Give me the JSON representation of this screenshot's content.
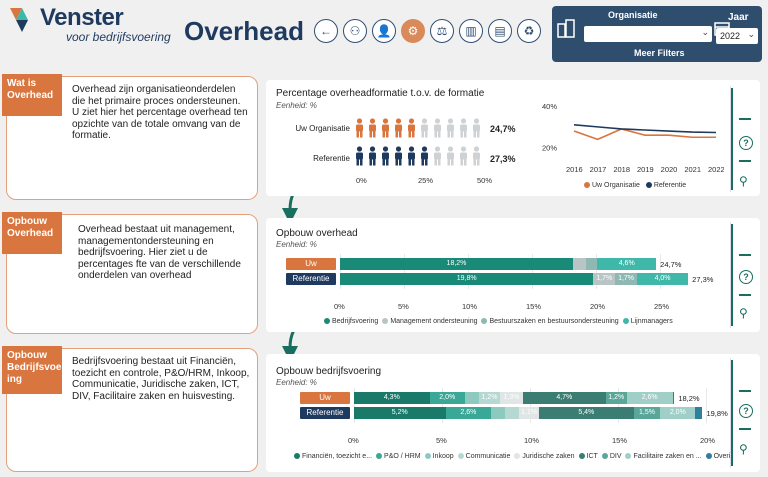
{
  "header": {
    "logo_title": "Venster",
    "logo_sub": "voor bedrijfsvoering",
    "page_title": "Overhead",
    "nav_icons": [
      "back-arrow-icon",
      "org-chart-icon",
      "person-icon",
      "gears-icon",
      "balance-icon",
      "buildings-icon",
      "presentation-icon",
      "recycle-icon"
    ],
    "active_nav": 3
  },
  "filters": {
    "org_label": "Organisatie",
    "org_value": "",
    "year_label": "Jaar",
    "year_value": "2022",
    "more_filters": "Meer Filters"
  },
  "sections": [
    {
      "tag": "Wat is Overhead",
      "text": "Overhead zijn organisatieonderdelen die het primaire proces ondersteunen. U ziet hier het percentage overhead ten opzichte van de totale omvang van de formatie."
    },
    {
      "tag": "Opbouw Overhead",
      "text": "Overhead bestaat uit management, managementondersteuning en bedrijfsvoering. Hier ziet u de percentages fte van de verschillende onderdelen van overhead"
    },
    {
      "tag": "Opbouw Bedrijfsvoer-ing",
      "text": "Bedrijfsvoering bestaat uit Financiën, toezicht en controle, P&O/HRM, Inkoop, Communicatie, Juridische zaken, ICT, DIV, Facilitaire zaken en huisvesting."
    }
  ],
  "card1": {
    "title": "Percentage overheadformatie t.o.v. de formatie",
    "unit": "Eenheid: %",
    "rows": [
      {
        "label": "Uw Organisatie",
        "value": "24,7%",
        "filled": 5
      },
      {
        "label": "Referentie",
        "value": "27,3%",
        "filled": 5.5
      }
    ],
    "axis": [
      "0%",
      "25%",
      "50%"
    ]
  },
  "chart_data": [
    {
      "type": "line",
      "x": [
        2016,
        2017,
        2018,
        2019,
        2020,
        2021,
        2022
      ],
      "series": [
        {
          "name": "Uw Organisatie",
          "values": [
            28,
            24,
            29,
            26,
            26,
            25,
            25
          ],
          "color": "#d9753e"
        },
        {
          "name": "Referentie",
          "values": [
            31,
            30,
            29,
            28.5,
            28,
            27.5,
            27.3
          ],
          "color": "#1f3a5f"
        }
      ],
      "yticks": [
        "20%",
        "40%"
      ],
      "ylim": [
        15,
        42
      ]
    },
    {
      "type": "bar",
      "title": "Opbouw overhead",
      "unit": "Eenheid: %",
      "categories": [
        "Uw Organisatie",
        "Referentie"
      ],
      "series": [
        {
          "name": "Bedrijfsvoering",
          "values": [
            18.2,
            19.8
          ],
          "color": "#1a8a78"
        },
        {
          "name": "Management ondersteuning",
          "values": [
            1.0,
            1.7
          ],
          "color": "#b9c4c4"
        },
        {
          "name": "Bestuurszaken en bestuursondersteuning",
          "values": [
            0.9,
            1.7
          ],
          "color": "#8fb8b3"
        },
        {
          "name": "Lijnmanagers",
          "values": [
            4.6,
            4.0
          ],
          "color": "#3fb8aa"
        }
      ],
      "labels": [
        [
          "18,2%",
          "",
          "",
          "4,6%"
        ],
        [
          "19,8%",
          "1,7%",
          "1,7%",
          "4,0%"
        ]
      ],
      "totals": [
        "24,7%",
        "27,3%"
      ],
      "xticks": [
        "0%",
        "5%",
        "10%",
        "15%",
        "20%",
        "25%"
      ],
      "xlim": [
        0,
        25
      ]
    },
    {
      "type": "bar",
      "title": "Opbouw bedrijfsvoering",
      "unit": "Eenheid: %",
      "categories": [
        "Uw Organisatie",
        "Referentie"
      ],
      "series": [
        {
          "name": "Financiën, toezicht e...",
          "values": [
            4.3,
            5.2
          ],
          "color": "#1a7a6a"
        },
        {
          "name": "P&O / HRM",
          "values": [
            2.0,
            2.6
          ],
          "color": "#3aa897"
        },
        {
          "name": "Inkoop",
          "values": [
            0.8,
            0.8
          ],
          "color": "#8ec9c0"
        },
        {
          "name": "Communicatie",
          "values": [
            1.2,
            0.8
          ],
          "color": "#b6d8d2"
        },
        {
          "name": "Juridische zaken",
          "values": [
            1.3,
            1.1
          ],
          "color": "#dfe6e5"
        },
        {
          "name": "ICT",
          "values": [
            4.7,
            5.4
          ],
          "color": "#3b7d72"
        },
        {
          "name": "DIV",
          "values": [
            1.2,
            1.5
          ],
          "color": "#5aa79a"
        },
        {
          "name": "Facilitaire zaken en ...",
          "values": [
            2.6,
            2.0
          ],
          "color": "#9fcfc7"
        },
        {
          "name": "Overig",
          "values": [
            0.1,
            0.4
          ],
          "color": "#2e7fa0"
        }
      ],
      "labels": [
        [
          "4,3%",
          "2,0%",
          "",
          "1,2%",
          "1,3%",
          "4,7%",
          "1,2%",
          "2,6%",
          ""
        ],
        [
          "5,2%",
          "2,6%",
          "",
          "",
          "1,1%",
          "5,4%",
          "1,5%",
          "2,0%",
          ""
        ]
      ],
      "totals": [
        "18,2%",
        "19,8%"
      ],
      "xticks": [
        "0%",
        "5%",
        "10%",
        "15%",
        "20%"
      ],
      "xlim": [
        0,
        20
      ]
    }
  ],
  "side": {
    "help": "?"
  }
}
